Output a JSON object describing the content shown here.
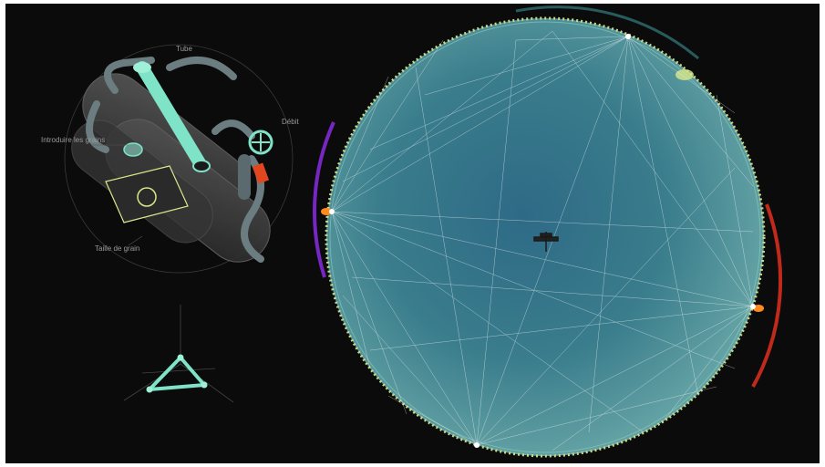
{
  "machine": {
    "labels": {
      "tube": "Tube",
      "debit": "Débit",
      "introduce": "Introduire les grains",
      "grain_size": "Taille de grain"
    }
  },
  "colors": {
    "background": "#0b0b0b",
    "accent": "#7fe3c7",
    "planet": "#3f7f8c",
    "ring_purple": "#8a2be2",
    "ring_red": "#e0301e",
    "beacon": "#ff8a1e"
  },
  "icons": {
    "station": "satellite-icon",
    "control": "triangle-control-icon"
  }
}
